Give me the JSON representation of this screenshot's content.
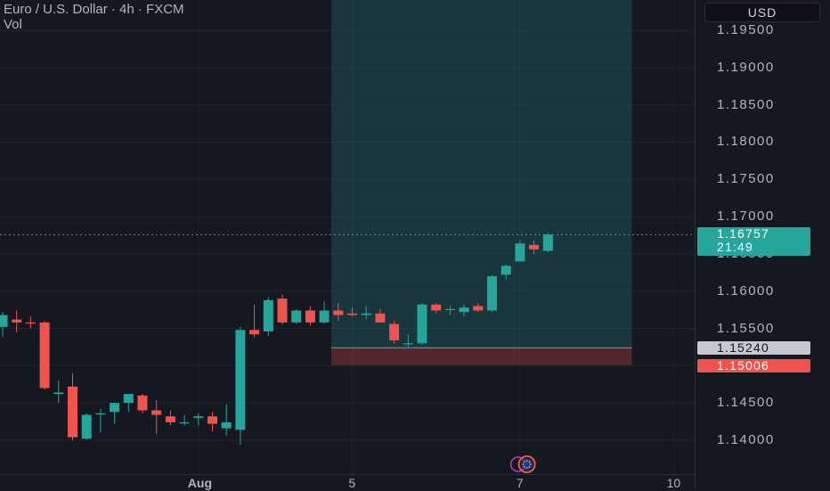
{
  "chart_data": {
    "type": "candlestick",
    "title": "Euro / U.S. Dollar · 4h · FXCM",
    "subtitle": "Vol",
    "y_ticks": [
      "1.19500",
      "1.19000",
      "1.18500",
      "1.18000",
      "1.17500",
      "1.17000",
      "1.16500",
      "1.16000",
      "1.15500",
      "1.15000",
      "1.14500",
      "1.14000"
    ],
    "ylim": [
      1.135,
      1.2
    ],
    "x_labels": [
      {
        "label": "Aug",
        "candle": 14
      },
      {
        "label": "5",
        "candle": 25
      },
      {
        "label": "7",
        "candle": 37
      },
      {
        "label": "10",
        "candle": 48
      }
    ],
    "current_price": {
      "value": "1.16757",
      "countdown": "21:49",
      "color": "#26a69a"
    },
    "markers": [
      {
        "value": "1.15240",
        "color": "#c5c8d0",
        "text_color": "#131722"
      },
      {
        "value": "1.15006",
        "color": "#ef5350",
        "text_color": "#ffffff"
      }
    ],
    "position_tool": {
      "entry": 1.1524,
      "target": 1.2,
      "stop": 1.15006,
      "start_candle": 23.5,
      "end_candle": 45
    },
    "candles": [
      {
        "o": 1.1552,
        "h": 1.1572,
        "l": 1.1538,
        "c": 1.1568
      },
      {
        "o": 1.1562,
        "h": 1.1574,
        "l": 1.1545,
        "c": 1.1558
      },
      {
        "o": 1.1558,
        "h": 1.1566,
        "l": 1.155,
        "c": 1.1557
      },
      {
        "o": 1.1558,
        "h": 1.156,
        "l": 1.1468,
        "c": 1.147
      },
      {
        "o": 1.1462,
        "h": 1.148,
        "l": 1.145,
        "c": 1.1464
      },
      {
        "o": 1.1472,
        "h": 1.149,
        "l": 1.14,
        "c": 1.1404
      },
      {
        "o": 1.1402,
        "h": 1.1436,
        "l": 1.14,
        "c": 1.1434
      },
      {
        "o": 1.1436,
        "h": 1.1442,
        "l": 1.141,
        "c": 1.1436
      },
      {
        "o": 1.1438,
        "h": 1.145,
        "l": 1.1422,
        "c": 1.145
      },
      {
        "o": 1.145,
        "h": 1.1462,
        "l": 1.1438,
        "c": 1.1462
      },
      {
        "o": 1.146,
        "h": 1.1462,
        "l": 1.1436,
        "c": 1.144
      },
      {
        "o": 1.144,
        "h": 1.1454,
        "l": 1.1408,
        "c": 1.1434
      },
      {
        "o": 1.1432,
        "h": 1.144,
        "l": 1.142,
        "c": 1.1424
      },
      {
        "o": 1.1424,
        "h": 1.1434,
        "l": 1.142,
        "c": 1.1424
      },
      {
        "o": 1.143,
        "h": 1.1436,
        "l": 1.142,
        "c": 1.1432
      },
      {
        "o": 1.1432,
        "h": 1.1438,
        "l": 1.1412,
        "c": 1.1422
      },
      {
        "o": 1.1416,
        "h": 1.1448,
        "l": 1.1406,
        "c": 1.1424
      },
      {
        "o": 1.1414,
        "h": 1.1552,
        "l": 1.1394,
        "c": 1.1548
      },
      {
        "o": 1.1548,
        "h": 1.1582,
        "l": 1.1538,
        "c": 1.1542
      },
      {
        "o": 1.1546,
        "h": 1.1592,
        "l": 1.154,
        "c": 1.1588
      },
      {
        "o": 1.159,
        "h": 1.1596,
        "l": 1.1556,
        "c": 1.1558
      },
      {
        "o": 1.1558,
        "h": 1.1576,
        "l": 1.1556,
        "c": 1.1574
      },
      {
        "o": 1.1574,
        "h": 1.158,
        "l": 1.1554,
        "c": 1.1558
      },
      {
        "o": 1.1558,
        "h": 1.1586,
        "l": 1.1556,
        "c": 1.1574
      },
      {
        "o": 1.1574,
        "h": 1.1584,
        "l": 1.156,
        "c": 1.1568
      },
      {
        "o": 1.157,
        "h": 1.1578,
        "l": 1.1566,
        "c": 1.1568
      },
      {
        "o": 1.1568,
        "h": 1.158,
        "l": 1.1562,
        "c": 1.157
      },
      {
        "o": 1.157,
        "h": 1.1576,
        "l": 1.156,
        "c": 1.1558
      },
      {
        "o": 1.1556,
        "h": 1.156,
        "l": 1.153,
        "c": 1.1534
      },
      {
        "o": 1.153,
        "h": 1.1542,
        "l": 1.1524,
        "c": 1.153
      },
      {
        "o": 1.153,
        "h": 1.1584,
        "l": 1.1528,
        "c": 1.1582
      },
      {
        "o": 1.1582,
        "h": 1.1584,
        "l": 1.157,
        "c": 1.1574
      },
      {
        "o": 1.1576,
        "h": 1.158,
        "l": 1.1568,
        "c": 1.1576
      },
      {
        "o": 1.1572,
        "h": 1.1582,
        "l": 1.1566,
        "c": 1.1578
      },
      {
        "o": 1.158,
        "h": 1.1584,
        "l": 1.1572,
        "c": 1.1574
      },
      {
        "o": 1.1574,
        "h": 1.1622,
        "l": 1.1572,
        "c": 1.162
      },
      {
        "o": 1.1622,
        "h": 1.1636,
        "l": 1.1616,
        "c": 1.1634
      },
      {
        "o": 1.164,
        "h": 1.1668,
        "l": 1.164,
        "c": 1.1664
      },
      {
        "o": 1.1662,
        "h": 1.1668,
        "l": 1.165,
        "c": 1.1656
      },
      {
        "o": 1.1654,
        "h": 1.1678,
        "l": 1.1652,
        "c": 1.1676
      }
    ],
    "colors": {
      "up": "#26a69a",
      "down": "#ef5350",
      "profit_zone": "rgba(38,166,154,0.22)",
      "loss_zone": "rgba(239,83,80,0.28)"
    },
    "grid": true
  },
  "header": {
    "currency_button": "USD",
    "event_icon": "economic-event-icon"
  }
}
